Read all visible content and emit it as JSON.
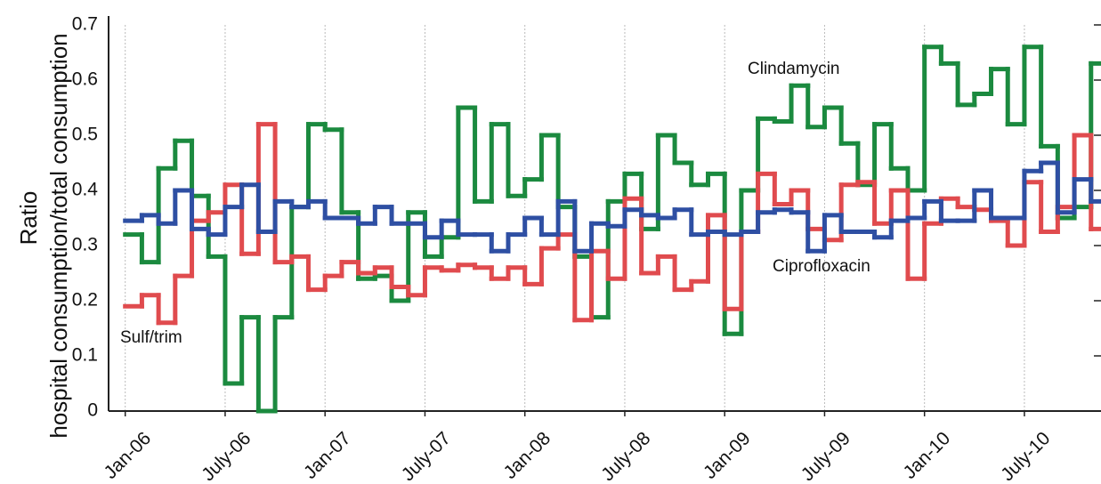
{
  "chart_data": {
    "type": "step",
    "ylabel": [
      "Ratio",
      "hospital consumption/total consumption"
    ],
    "x": [
      0,
      1,
      2,
      3,
      4,
      5,
      6,
      7,
      8,
      9,
      10,
      11,
      12,
      13,
      14,
      15,
      16,
      17,
      18,
      19,
      20,
      21,
      22,
      23,
      24,
      25,
      26,
      27,
      28,
      29,
      30,
      31,
      32,
      33,
      34,
      35,
      36,
      37,
      38,
      39,
      40,
      41,
      42,
      43,
      44,
      45,
      46,
      47,
      48,
      49,
      50,
      51,
      52,
      53,
      54,
      55,
      56,
      57,
      58
    ],
    "xlim": [
      -1,
      58.6
    ],
    "xticks": [
      {
        "value": 0,
        "label": "Jan-06"
      },
      {
        "value": 6,
        "label": "July-06"
      },
      {
        "value": 12,
        "label": "Jan-07"
      },
      {
        "value": 18,
        "label": "July-07"
      },
      {
        "value": 24,
        "label": "Jan-08"
      },
      {
        "value": 30,
        "label": "July-08"
      },
      {
        "value": 36,
        "label": "Jan-09"
      },
      {
        "value": 42,
        "label": "July-09"
      },
      {
        "value": 48,
        "label": "Jan-10"
      },
      {
        "value": 54,
        "label": "July-10"
      }
    ],
    "ylim": [
      0,
      0.7
    ],
    "yticks": [
      0,
      0.1,
      0.2,
      0.3,
      0.4,
      0.5,
      0.6,
      0.7
    ],
    "grid": true,
    "series": [
      {
        "name": "Clindamycin",
        "color": "#1b8a3f",
        "values": [
          0.32,
          0.27,
          0.44,
          0.49,
          0.39,
          0.28,
          0.05,
          0.17,
          0,
          0.17,
          0.37,
          0.52,
          0.51,
          0.36,
          0.24,
          0.245,
          0.2,
          0.36,
          0.28,
          0.315,
          0.55,
          0.38,
          0.52,
          0.39,
          0.42,
          0.5,
          0.37,
          0.28,
          0.17,
          0.38,
          0.43,
          0.33,
          0.5,
          0.45,
          0.41,
          0.43,
          0.14,
          0.4,
          0.53,
          0.525,
          0.59,
          0.515,
          0.55,
          0.485,
          0.41,
          0.52,
          0.44,
          0.4,
          0.66,
          0.63,
          0.555,
          0.575,
          0.62,
          0.52,
          0.66,
          0.48,
          0.35,
          0.37,
          0.63
        ]
      },
      {
        "name": "Sulf/trim",
        "color": "#e04b4e",
        "values": [
          0.19,
          0.21,
          0.16,
          0.245,
          0.345,
          0.36,
          0.41,
          0.285,
          0.52,
          0.27,
          0.28,
          0.22,
          0.245,
          0.27,
          0.25,
          0.26,
          0.225,
          0.21,
          0.26,
          0.255,
          0.265,
          0.26,
          0.24,
          0.26,
          0.23,
          0.295,
          0.32,
          0.165,
          0.29,
          0.24,
          0.385,
          0.25,
          0.28,
          0.22,
          0.235,
          0.355,
          0.185,
          0.325,
          0.43,
          0.375,
          0.4,
          0.33,
          0.31,
          0.41,
          0.415,
          0.34,
          0.4,
          0.24,
          0.34,
          0.385,
          0.37,
          0.365,
          0.345,
          0.3,
          0.415,
          0.325,
          0.37,
          0.5,
          0.33
        ]
      },
      {
        "name": "Ciprofloxacin",
        "color": "#2e4fa3",
        "values": [
          0.345,
          0.355,
          0.34,
          0.4,
          0.33,
          0.32,
          0.37,
          0.41,
          0.325,
          0.38,
          0.37,
          0.38,
          0.35,
          0.35,
          0.34,
          0.37,
          0.34,
          0.34,
          0.315,
          0.345,
          0.32,
          0.32,
          0.29,
          0.32,
          0.35,
          0.32,
          0.38,
          0.29,
          0.34,
          0.335,
          0.365,
          0.355,
          0.35,
          0.365,
          0.32,
          0.325,
          0.32,
          0.325,
          0.36,
          0.365,
          0.36,
          0.29,
          0.355,
          0.325,
          0.325,
          0.315,
          0.345,
          0.35,
          0.38,
          0.345,
          0.345,
          0.4,
          0.35,
          0.35,
          0.435,
          0.45,
          0.36,
          0.42,
          0.38
        ]
      }
    ]
  }
}
